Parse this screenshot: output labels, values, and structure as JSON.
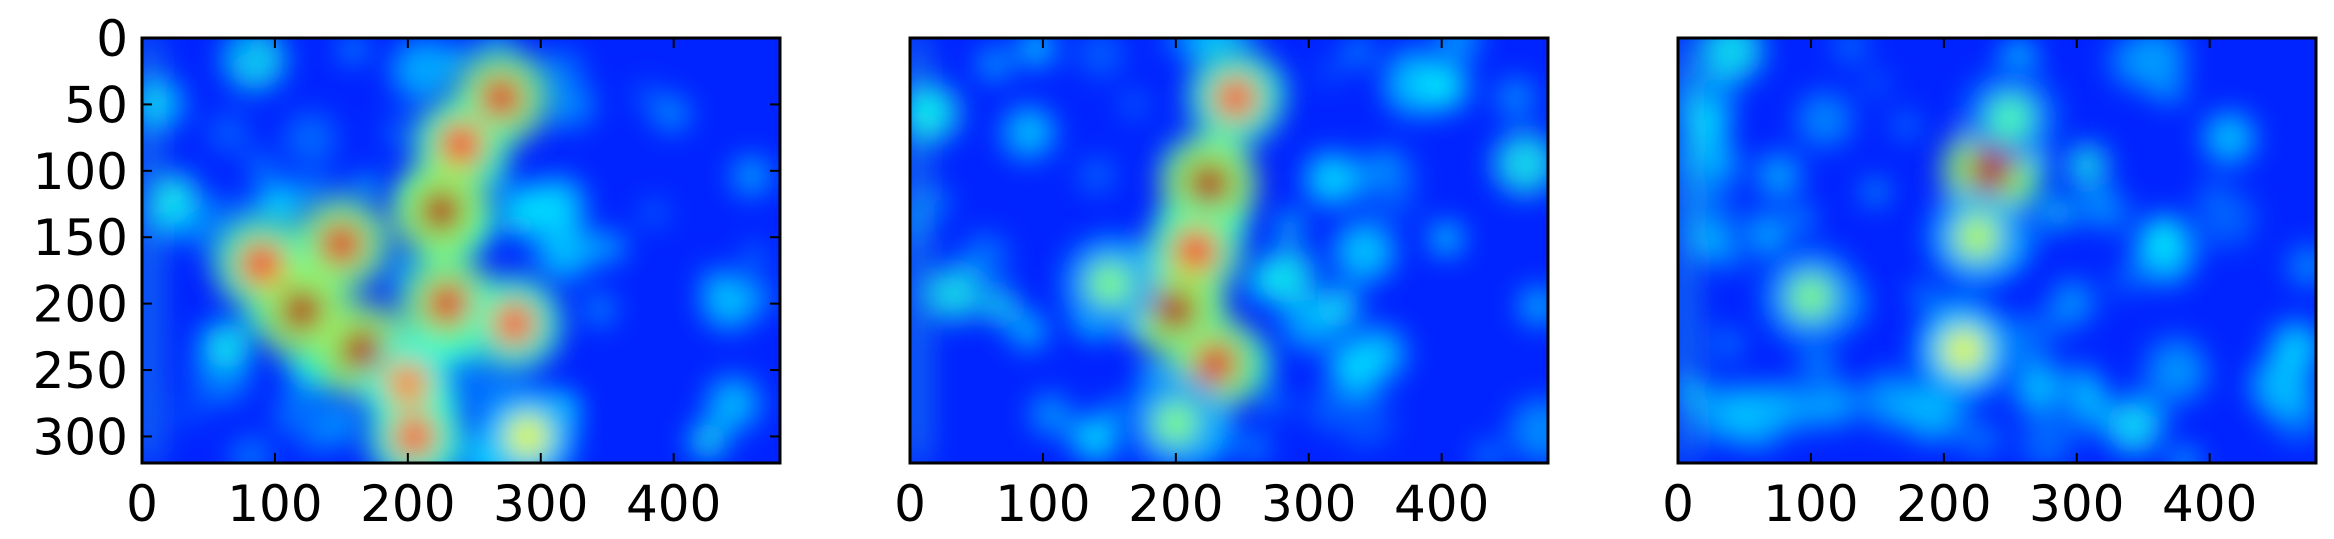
{
  "chart_data": [
    {
      "type": "heatmap",
      "title": "",
      "xlabel": "",
      "ylabel": "",
      "xlim": [
        0,
        480
      ],
      "ylim": [
        320,
        0
      ],
      "xticks": [
        "0",
        "100",
        "200",
        "300",
        "400"
      ],
      "yticks": [
        "0",
        "50",
        "100",
        "150",
        "200",
        "250",
        "300"
      ],
      "colormap": "jet",
      "grid": false,
      "hotspots": [
        {
          "x": 270,
          "y": 45,
          "v": 0.9
        },
        {
          "x": 240,
          "y": 80,
          "v": 0.85
        },
        {
          "x": 225,
          "y": 130,
          "v": 0.95
        },
        {
          "x": 150,
          "y": 155,
          "v": 0.9
        },
        {
          "x": 90,
          "y": 170,
          "v": 0.85
        },
        {
          "x": 120,
          "y": 205,
          "v": 0.95
        },
        {
          "x": 165,
          "y": 235,
          "v": 0.95
        },
        {
          "x": 230,
          "y": 200,
          "v": 0.9
        },
        {
          "x": 280,
          "y": 215,
          "v": 0.8
        },
        {
          "x": 200,
          "y": 260,
          "v": 0.75
        },
        {
          "x": 205,
          "y": 300,
          "v": 0.8
        },
        {
          "x": 290,
          "y": 300,
          "v": 0.6
        }
      ]
    },
    {
      "type": "heatmap",
      "title": "",
      "xlabel": "",
      "ylabel": "",
      "xlim": [
        0,
        480
      ],
      "ylim": [
        320,
        0
      ],
      "xticks": [
        "0",
        "100",
        "200",
        "300",
        "400"
      ],
      "yticks": [],
      "colormap": "jet",
      "grid": false,
      "hotspots": [
        {
          "x": 245,
          "y": 45,
          "v": 0.8
        },
        {
          "x": 225,
          "y": 110,
          "v": 0.95
        },
        {
          "x": 215,
          "y": 160,
          "v": 0.85
        },
        {
          "x": 200,
          "y": 205,
          "v": 0.95
        },
        {
          "x": 230,
          "y": 245,
          "v": 0.9
        },
        {
          "x": 150,
          "y": 185,
          "v": 0.5
        },
        {
          "x": 200,
          "y": 290,
          "v": 0.5
        }
      ]
    },
    {
      "type": "heatmap",
      "title": "",
      "xlabel": "",
      "ylabel": "",
      "xlim": [
        0,
        480
      ],
      "ylim": [
        320,
        0
      ],
      "xticks": [
        "0",
        "100",
        "200",
        "300",
        "400"
      ],
      "yticks": [],
      "colormap": "jet",
      "grid": false,
      "hotspots": [
        {
          "x": 235,
          "y": 100,
          "v": 0.95
        },
        {
          "x": 225,
          "y": 150,
          "v": 0.55
        },
        {
          "x": 215,
          "y": 235,
          "v": 0.6
        },
        {
          "x": 100,
          "y": 195,
          "v": 0.5
        },
        {
          "x": 250,
          "y": 60,
          "v": 0.45
        }
      ]
    }
  ]
}
